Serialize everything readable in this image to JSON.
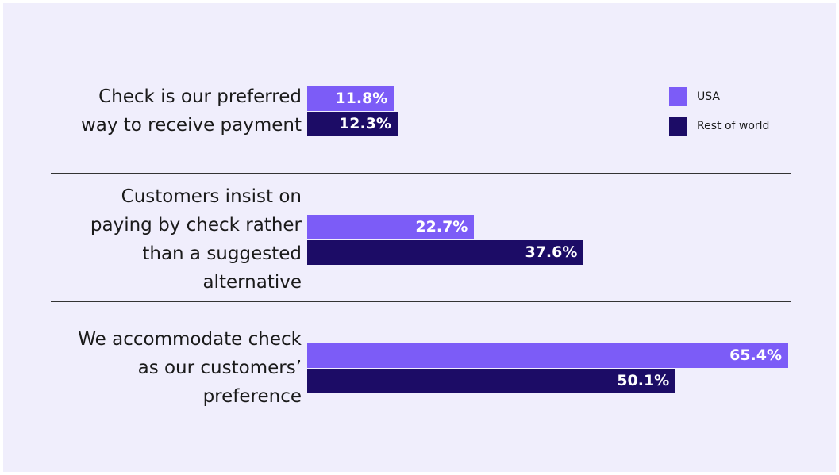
{
  "chart_data": {
    "type": "bar",
    "orientation": "horizontal",
    "categories": [
      "Check is our preferred\nway to receive payment",
      "Customers insist on\npaying by check rather\nthan a suggested\nalternative",
      "We accommodate check\nas our customers’\npreference"
    ],
    "series": [
      {
        "name": "USA",
        "color": "#7c5cf7",
        "values": [
          11.8,
          22.7,
          65.4
        ],
        "value_labels": [
          "11.8%",
          "22.7%",
          "65.4%"
        ]
      },
      {
        "name": "Rest of world",
        "color": "#1c0c66",
        "values": [
          12.3,
          37.6,
          50.1
        ],
        "value_labels": [
          "12.3%",
          "37.6%",
          "50.1%"
        ]
      }
    ],
    "xlim": [
      0,
      65.4
    ],
    "legend": "top-right"
  }
}
